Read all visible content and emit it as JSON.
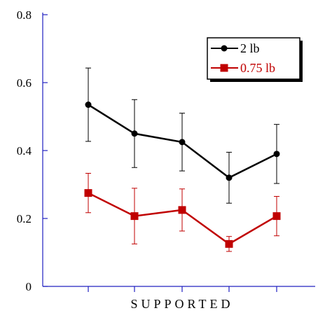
{
  "chart_data": {
    "type": "line",
    "xlabel": "SUPPORTED",
    "ylabel": "",
    "ylim": [
      0,
      0.8
    ],
    "y_ticks": [
      "0",
      "0.2",
      "0.4",
      "0.6",
      "0.8"
    ],
    "x": [
      1,
      2,
      3,
      4,
      5
    ],
    "grid": false,
    "legend_position": "top-right",
    "series": [
      {
        "name": "2 lb",
        "color": "#000000",
        "marker": "circle",
        "values": [
          0.535,
          0.45,
          0.425,
          0.32,
          0.39
        ],
        "error": [
          0.108,
          0.1,
          0.085,
          0.075,
          0.087
        ]
      },
      {
        "name": "0.75 lb",
        "color": "#c00000",
        "marker": "square",
        "values": [
          0.275,
          0.207,
          0.225,
          0.125,
          0.207
        ],
        "error": [
          0.058,
          0.082,
          0.062,
          0.022,
          0.058
        ]
      }
    ]
  }
}
